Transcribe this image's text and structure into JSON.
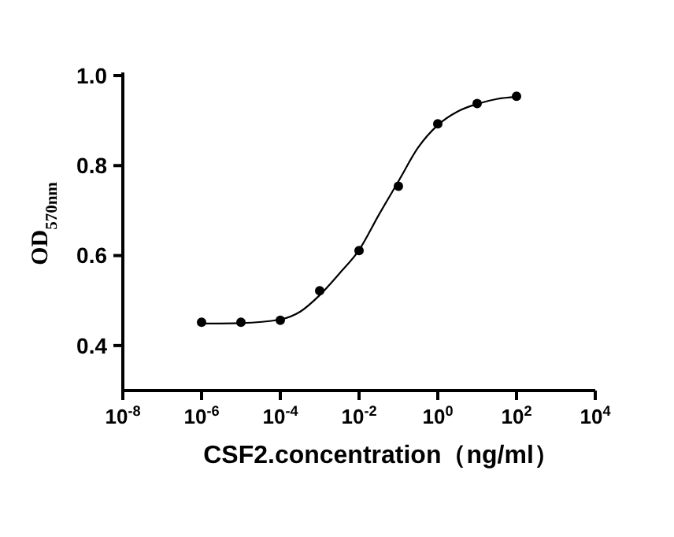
{
  "chart_data": {
    "type": "scatter",
    "xlabel": "CSF2.concentration（ng/ml）",
    "ylabel": "OD$_{570nm}$",
    "log": "x",
    "marker": "circle",
    "grid": false,
    "xlim": [
      1e-08,
      10000
    ],
    "xticks": [
      {
        "value": 1e-08,
        "label": "10$^{-8}$"
      },
      {
        "value": 1e-06,
        "label": "10$^{-6}$"
      },
      {
        "value": 0.0001,
        "label": "10$^{-4}$"
      },
      {
        "value": 0.01,
        "label": "10$^{-2}$"
      },
      {
        "value": 1,
        "label": "10$^{0}$"
      },
      {
        "value": 100,
        "label": "10$^{2}$"
      },
      {
        "value": 10000,
        "label": "10$^{4}$"
      }
    ],
    "ylim": [
      0.3,
      1.0
    ],
    "yticks": [
      0.4,
      0.6,
      0.8,
      {
        "value": 1.0,
        "label": "1.0"
      }
    ],
    "series": [
      {
        "color": "#000000",
        "x": [
          1e-06,
          1e-05,
          0.0001,
          0.001,
          0.01,
          0.1,
          1,
          10,
          100
        ],
        "values": [
          0.452,
          0.452,
          0.456,
          0.522,
          0.611,
          0.754,
          0.893,
          0.938,
          0.954
        ]
      },
      {
        "type": "line",
        "color": "#000000",
        "marker": "none",
        "x": [
          1e-06,
          1e-05,
          0.0001,
          0.000316,
          0.001,
          0.00316,
          0.01,
          0.0316,
          0.1,
          0.316,
          1,
          3.16,
          10,
          31.6,
          100
        ],
        "values": [
          0.449,
          0.45,
          0.458,
          0.475,
          0.512,
          0.56,
          0.612,
          0.69,
          0.765,
          0.84,
          0.89,
          0.92,
          0.937,
          0.948,
          0.953
        ]
      }
    ]
  }
}
